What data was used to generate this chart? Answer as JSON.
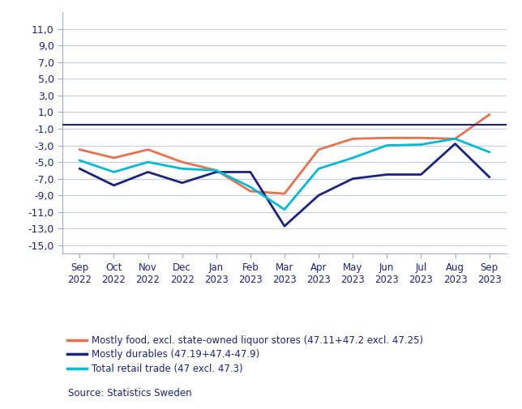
{
  "x_labels": [
    "Sep\n2022",
    "Oct\n2022",
    "Nov\n2022",
    "Dec\n2022",
    "Jan\n2023",
    "Feb\n2023",
    "Mar\n2023",
    "Apr\n2023",
    "May\n2023",
    "Jun\n2023",
    "Jul\n2023",
    "Aug\n2023",
    "Sep\n2023"
  ],
  "food": [
    -3.5,
    -4.5,
    -3.5,
    -5.0,
    -6.0,
    -8.5,
    -8.8,
    -3.5,
    -2.2,
    -2.1,
    -2.1,
    -2.2,
    0.7
  ],
  "durables": [
    -5.8,
    -7.8,
    -6.2,
    -7.5,
    -6.2,
    -6.2,
    -12.7,
    -9.0,
    -7.0,
    -6.5,
    -6.5,
    -2.8,
    -6.8
  ],
  "retail": [
    -4.8,
    -6.2,
    -5.0,
    -5.8,
    -6.0,
    -8.0,
    -10.7,
    -5.8,
    -4.5,
    -3.0,
    -2.9,
    -2.2,
    -3.8
  ],
  "food_color": "#E8704A",
  "durables_color": "#1A237E",
  "retail_color": "#00BCD4",
  "hline_color": "#1A237E",
  "hline_y": -0.5,
  "yticks": [
    11.0,
    9.0,
    7.0,
    5.0,
    3.0,
    1.0,
    -1.0,
    -3.0,
    -5.0,
    -7.0,
    -9.0,
    -11.0,
    -13.0,
    -15.0
  ],
  "ylim": [
    -16.0,
    13.0
  ],
  "grid_color": "#C5CAE9",
  "tick_label_color": "#1A237E",
  "background_color": "#FFFFFF",
  "legend_food": "Mostly food, excl. state-owned liquor stores (47.11+47.2 excl. 47.25)",
  "legend_durables": "Mostly durables (47.19+47.4-47.9)",
  "legend_retail": "Total retail trade (47 excl. 47.3)",
  "source_text": "Source: Statistics Sweden",
  "source_color": "#1A237E",
  "linewidth": 2.0,
  "axis_color": "#1A237E",
  "spine_color": "#9FA8DA"
}
